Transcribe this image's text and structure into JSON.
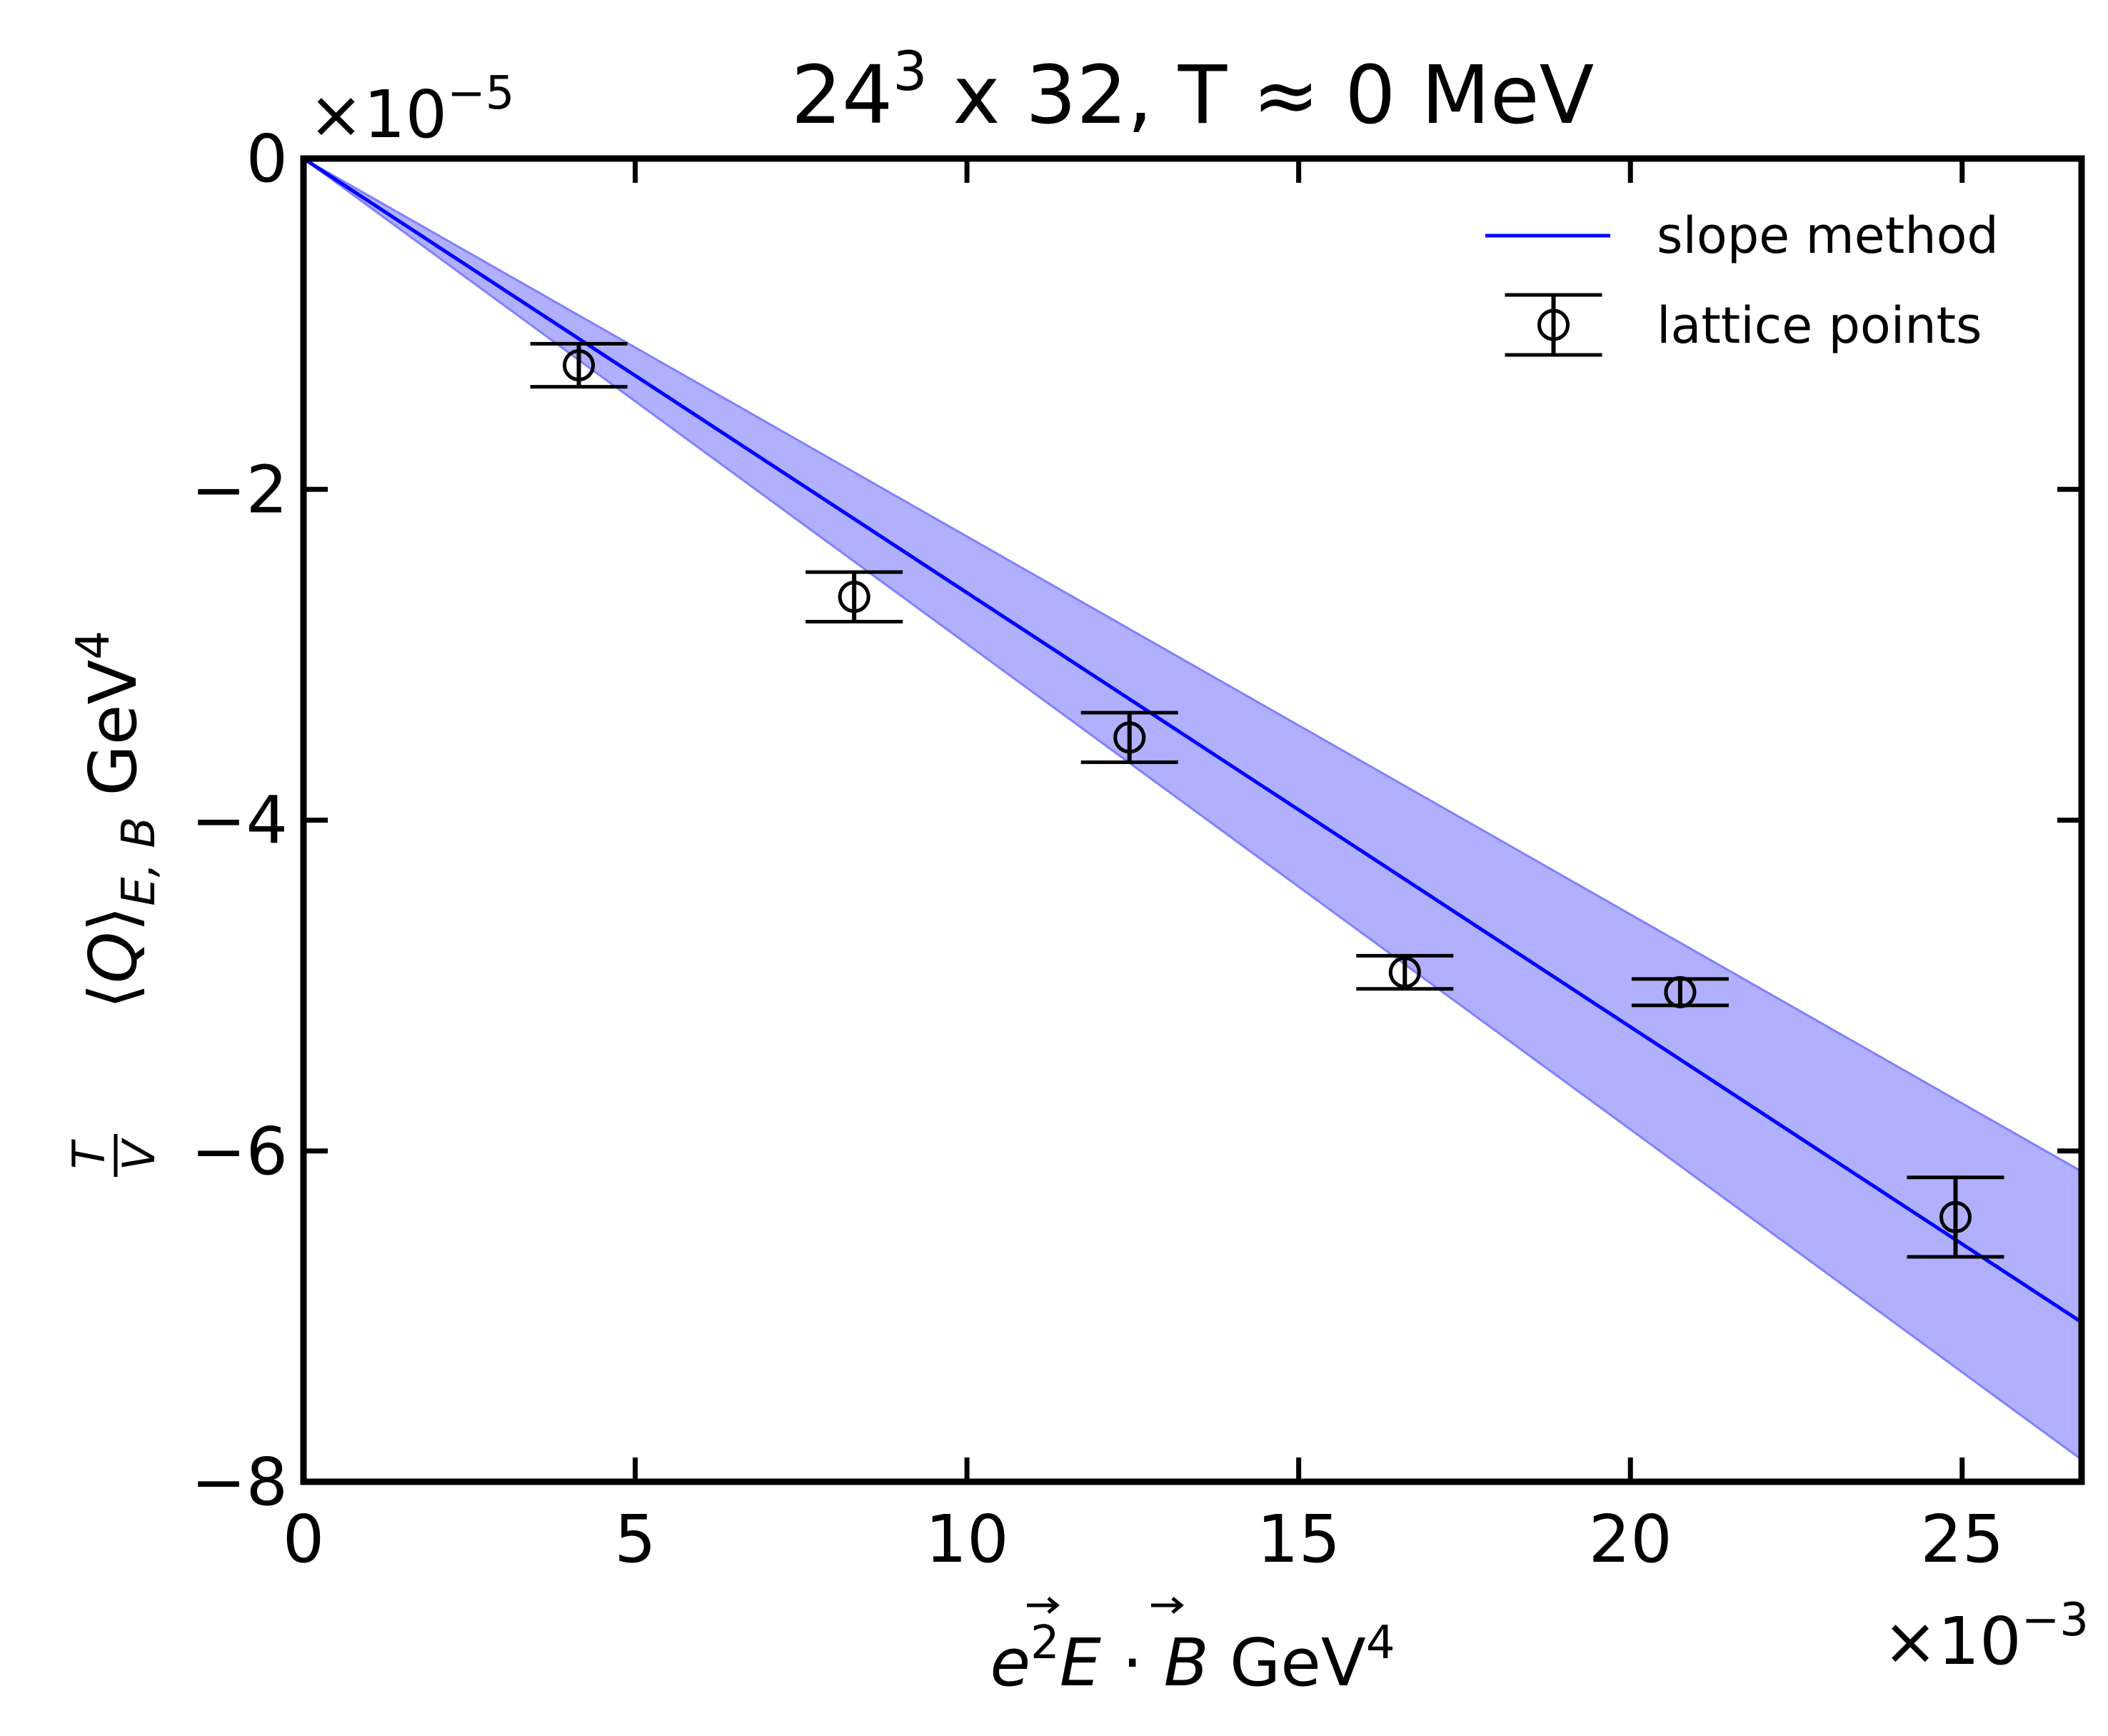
{
  "chart_data": {
    "type": "scatter",
    "title": {
      "base": "24",
      "sup": "3",
      "rest": " x 32, T ≈ 0 MeV"
    },
    "xlabel": {
      "e": "e",
      "e_sup": "2",
      "E": "E",
      "dot": " · ",
      "B": "B",
      "unit": " GeV",
      "unit_sup": "4"
    },
    "ylabel": {
      "frac_num": "T",
      "frac_den": "V",
      "bracket_open": "⟨",
      "Q": "Q",
      "bracket_close": "⟩",
      "sub": "E, B",
      "unit": " GeV",
      "unit_sup": "4"
    },
    "x_multiplier": {
      "base": "×10",
      "exp": "−3"
    },
    "y_multiplier": {
      "base": "×10",
      "exp": "−5"
    },
    "xlim": [
      0,
      26.8
    ],
    "ylim": [
      -8,
      0
    ],
    "x_units_note": "",
    "xticks": [
      0,
      5,
      10,
      15,
      20,
      25
    ],
    "xtick_labels": [
      "0",
      "5",
      "10",
      "15",
      "20",
      "25"
    ],
    "yticks": [
      0,
      -2,
      -4,
      -6,
      -8
    ],
    "ytick_labels": [
      "0",
      "−2",
      "−4",
      "−6",
      "−8"
    ],
    "grid": false,
    "legend_position": "top-right",
    "series": [
      {
        "name": "slope method",
        "kind": "line",
        "color": "#0000ff",
        "slope": -0.2625,
        "x": [
          0,
          26.8
        ],
        "y": [
          0,
          -7.035
        ],
        "band": {
          "color": "#b0b0ff",
          "edge_color": "#8080ff",
          "upper_slope": -0.2285,
          "lower_slope": -0.2935
        }
      },
      {
        "name": "lattice points",
        "kind": "errorbar",
        "color": "#000000",
        "marker": "open-circle",
        "x": [
          4.15,
          8.3,
          12.45,
          16.6,
          20.75,
          24.9
        ],
        "y": [
          -1.25,
          -2.65,
          -3.5,
          -4.92,
          -5.04,
          -6.4
        ],
        "yerr": [
          0.13,
          0.15,
          0.15,
          0.1,
          0.08,
          0.24
        ]
      }
    ]
  }
}
